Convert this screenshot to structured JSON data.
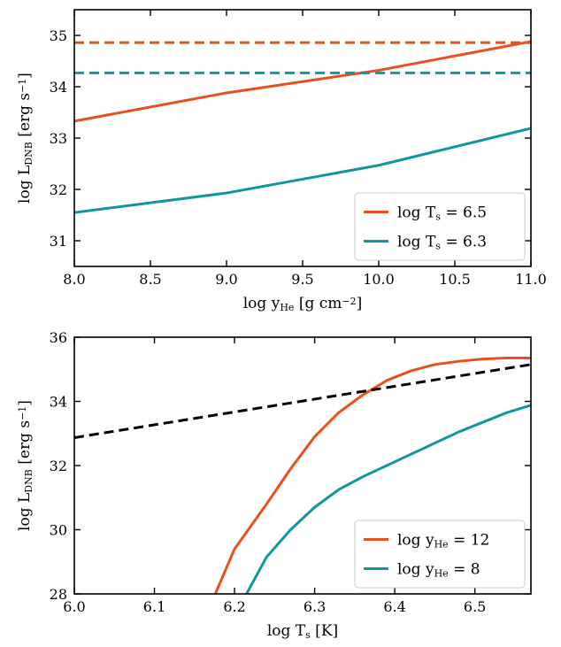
{
  "chart_data": [
    {
      "type": "line",
      "xlabel": "log y",
      "xlabel_sub": "He",
      "xlabel_rest": " [g cm",
      "xlabel_sup": "−2",
      "xlabel_end": "]",
      "ylabel": "log L",
      "ylabel_sub": "DNB",
      "ylabel_rest": " [erg s",
      "ylabel_sup": "−1",
      "ylabel_end": "]",
      "xlim": [
        8.0,
        11.0
      ],
      "ylim": [
        30.5,
        35.5
      ],
      "xticks": [
        8.0,
        8.5,
        9.0,
        9.5,
        10.0,
        10.5,
        11.0
      ],
      "xtick_labels": [
        "8.0",
        "8.5",
        "9.0",
        "9.5",
        "10.0",
        "10.5",
        "11.0"
      ],
      "yticks": [
        31,
        32,
        33,
        34,
        35
      ],
      "ytick_labels": [
        "31",
        "32",
        "33",
        "34",
        "35"
      ],
      "legend_position": "lower-right",
      "series": [
        {
          "name": "log T",
          "name_sub": "s",
          "name_rest": " = 6.5",
          "color": "#e8501e",
          "style": "solid",
          "x": [
            8.0,
            9.0,
            10.0,
            11.0
          ],
          "y": [
            33.33,
            33.88,
            34.32,
            34.88
          ]
        },
        {
          "name": "log T",
          "name_sub": "s",
          "name_rest": " = 6.3",
          "color": "#10979e",
          "style": "solid",
          "x": [
            8.0,
            9.0,
            10.0,
            11.0
          ],
          "y": [
            31.55,
            31.93,
            32.47,
            33.19
          ]
        },
        {
          "color": "#e8501e",
          "style": "dashed",
          "x": [
            8.0,
            11.0
          ],
          "y": [
            34.86,
            34.86
          ]
        },
        {
          "color": "#10979e",
          "style": "dashed",
          "x": [
            8.0,
            11.0
          ],
          "y": [
            34.27,
            34.27
          ]
        }
      ]
    },
    {
      "type": "line",
      "xlabel": "log T",
      "xlabel_sub": "s",
      "xlabel_rest": " [K]",
      "xlabel_sup": "",
      "xlabel_end": "",
      "ylabel": "log L",
      "ylabel_sub": "DNB",
      "ylabel_rest": " [erg s",
      "ylabel_sup": "−1",
      "ylabel_end": "]",
      "xlim": [
        6.0,
        6.57
      ],
      "ylim": [
        28,
        36
      ],
      "xticks": [
        6.0,
        6.1,
        6.2,
        6.3,
        6.4,
        6.5
      ],
      "xtick_labels": [
        "6.0",
        "6.1",
        "6.2",
        "6.3",
        "6.4",
        "6.5"
      ],
      "yticks": [
        28,
        30,
        32,
        34,
        36
      ],
      "ytick_labels": [
        "28",
        "30",
        "32",
        "34",
        "36"
      ],
      "legend_position": "lower-right",
      "series": [
        {
          "name": "log y",
          "name_sub": "He",
          "name_rest": " = 12",
          "color": "#e8501e",
          "style": "solid",
          "x": [
            6.176,
            6.2,
            6.24,
            6.27,
            6.3,
            6.33,
            6.36,
            6.39,
            6.42,
            6.45,
            6.48,
            6.51,
            6.54,
            6.57
          ],
          "y": [
            28.0,
            29.4,
            30.8,
            31.9,
            32.9,
            33.65,
            34.2,
            34.65,
            34.95,
            35.15,
            35.25,
            35.32,
            35.35,
            35.35
          ]
        },
        {
          "name": "log y",
          "name_sub": "He",
          "name_rest": " = 8",
          "color": "#10979e",
          "style": "solid",
          "x": [
            6.215,
            6.24,
            6.27,
            6.3,
            6.33,
            6.36,
            6.39,
            6.42,
            6.45,
            6.48,
            6.51,
            6.54,
            6.57
          ],
          "y": [
            28.0,
            29.15,
            30.0,
            30.7,
            31.25,
            31.65,
            32.0,
            32.35,
            32.7,
            33.05,
            33.35,
            33.65,
            33.88
          ]
        },
        {
          "color": "#000000",
          "style": "dashed",
          "x": [
            6.0,
            6.57
          ],
          "y": [
            32.87,
            35.15
          ]
        }
      ]
    }
  ]
}
